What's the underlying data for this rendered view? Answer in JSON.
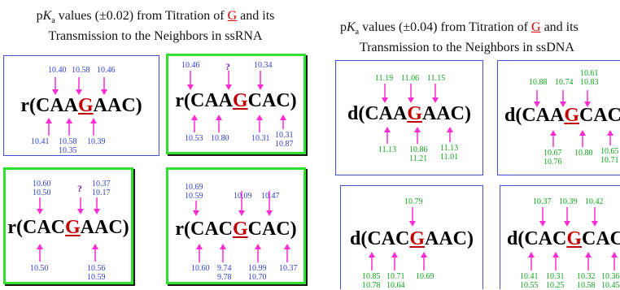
{
  "titles": {
    "rna": {
      "pre": "p",
      "K": "K",
      "sub": "a",
      "mid": " values (±0.02) from Titration of ",
      "g": "G",
      "post": " and its",
      "line2": "Transmission to the Neighbors in ssRNA"
    },
    "dna": {
      "pre": "p",
      "K": "K",
      "sub": "a",
      "mid": " values (±0.04) from Titration of ",
      "g": "G",
      "post": " and its",
      "line2": "Transmission to the Neighbors in ssDNA"
    }
  },
  "panels": [
    {
      "seq_pre": "r(CAA",
      "seq_g": "G",
      "seq_post": "AAC)",
      "top": [
        "10.40",
        "10.58",
        "10.46"
      ],
      "bottom": [
        "10.41",
        "10.58",
        "10.35",
        "10.39"
      ]
    },
    {
      "seq_pre": "r(CAA",
      "seq_g": "G",
      "seq_post": "CAC)",
      "top": [
        "10.46",
        "?",
        "10.34"
      ],
      "bottom": [
        "10.53",
        "10.80",
        "10.31",
        "10.31",
        "10.87"
      ]
    },
    {
      "seq_pre": "r(CAC",
      "seq_g": "G",
      "seq_post": "AAC)",
      "top": [
        "10.60",
        "10.50",
        "?",
        "10.37",
        "10.17"
      ],
      "bottom": [
        "10.50",
        "10.56",
        "10.59"
      ]
    },
    {
      "seq_pre": "r(CAC",
      "seq_g": "G",
      "seq_post": "CAC)",
      "top": [
        "10.69",
        "10.59",
        "10.09",
        "10.47"
      ],
      "bottom": [
        "10.60",
        "9.74",
        "9.78",
        "10.99",
        "10.70",
        "10.37"
      ]
    },
    {
      "seq_pre": "d(CAA",
      "seq_g": "G",
      "seq_post": "AAC)",
      "top": [
        "11.19",
        "11.06",
        "11.15"
      ],
      "bottom": [
        "11.13",
        "10.86",
        "11.21",
        "11.13",
        "11.01"
      ]
    },
    {
      "seq_pre": "d(CAA",
      "seq_g": "G",
      "seq_post": "CAC)",
      "top": [
        "10.61",
        "10.88",
        "10.74",
        "10.83"
      ],
      "bottom": [
        "10.67",
        "10.76",
        "10.80",
        "10.65",
        "10.71"
      ]
    },
    {
      "seq_pre": "d(CAC",
      "seq_g": "G",
      "seq_post": "AAC)",
      "top": [
        "10.79"
      ],
      "bottom": [
        "10.85",
        "10.78",
        "10.71",
        "10.64",
        "10.69"
      ]
    },
    {
      "seq_pre": "d(CAC",
      "seq_g": "G",
      "seq_post": "CAC)",
      "top": [
        "10.37",
        "10.39",
        "10.42"
      ],
      "bottom": [
        "10.41",
        "10.55",
        "10.31",
        "10.25",
        "10.32",
        "10.58",
        "10.36",
        "10.45"
      ]
    }
  ]
}
